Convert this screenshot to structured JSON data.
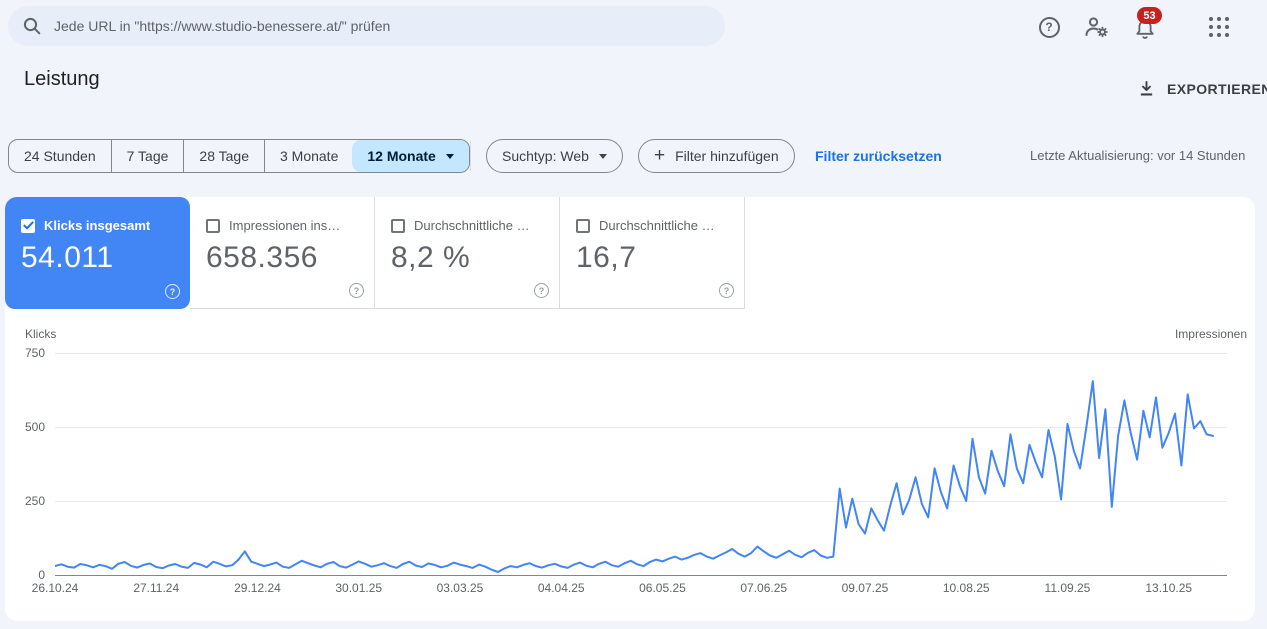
{
  "topbar": {
    "search_placeholder": "Jede URL in \"https://www.studio-benessere.at/\" prüfen",
    "notifications_count": "53"
  },
  "header": {
    "title": "Leistung",
    "export_label": "EXPORTIEREN"
  },
  "filters": {
    "ranges": [
      "24 Stunden",
      "7 Tage",
      "28 Tage",
      "3 Monate",
      "12 Monate"
    ],
    "selected_range": "12 Monate",
    "search_type_label": "Suchtyp: Web",
    "add_filter_label": "Filter hinzufügen",
    "reset_label": "Filter zurücksetzen",
    "last_update": "Letzte Aktualisierung: vor 14 Stunden"
  },
  "metrics": {
    "cards": [
      {
        "label": "Klicks insgesamt",
        "value": "54.011",
        "checked": true,
        "accent": "#4285f4"
      },
      {
        "label": "Impressionen ins…",
        "value": "658.356",
        "checked": false
      },
      {
        "label": "Durchschnittliche …",
        "value": "8,2 %",
        "checked": false
      },
      {
        "label": "Durchschnittliche …",
        "value": "16,7",
        "checked": false
      }
    ]
  },
  "chart_data": {
    "type": "line",
    "ylabel_left": "Klicks",
    "ylabel_right": "Impressionen",
    "ylim": [
      0,
      750
    ],
    "grid": true,
    "y_ticks": [
      "0",
      "250",
      "500",
      "750"
    ],
    "x_tick_labels": [
      "26.10.24",
      "27.11.24",
      "29.12.24",
      "30.01.25",
      "03.03.25",
      "04.04.25",
      "06.05.25",
      "07.06.25",
      "09.07.25",
      "10.08.25",
      "11.09.25",
      "13.10.25"
    ],
    "tick_every_points": 16,
    "interval_days": 2,
    "series": [
      {
        "name": "Klicks",
        "color": "#4285f4",
        "values": [
          30,
          36,
          28,
          25,
          37,
          33,
          26,
          34,
          30,
          21,
          38,
          44,
          31,
          25,
          34,
          39,
          27,
          23,
          32,
          37,
          28,
          24,
          41,
          35,
          26,
          45,
          38,
          29,
          33,
          52,
          80,
          45,
          38,
          30,
          35,
          42,
          28,
          24,
          36,
          48,
          40,
          32,
          26,
          38,
          44,
          30,
          25,
          35,
          46,
          38,
          28,
          33,
          40,
          30,
          24,
          37,
          45,
          32,
          27,
          39,
          34,
          26,
          31,
          42,
          35,
          30,
          24,
          35,
          28,
          18,
          10,
          22,
          30,
          26,
          34,
          40,
          30,
          25,
          33,
          38,
          29,
          24,
          35,
          42,
          31,
          26,
          38,
          45,
          33,
          28,
          40,
          48,
          36,
          30,
          44,
          52,
          46,
          55,
          62,
          52,
          58,
          68,
          74,
          62,
          55,
          66,
          76,
          88,
          72,
          62,
          74,
          96,
          80,
          66,
          58,
          70,
          82,
          68,
          60,
          75,
          84,
          66,
          58,
          62,
          292,
          160,
          258,
          172,
          140,
          225,
          185,
          150,
          235,
          310,
          205,
          255,
          330,
          240,
          195,
          360,
          280,
          225,
          370,
          300,
          250,
          460,
          330,
          275,
          420,
          350,
          300,
          475,
          360,
          310,
          440,
          380,
          330,
          490,
          400,
          255,
          510,
          420,
          360,
          500,
          655,
          395,
          560,
          230,
          470,
          590,
          480,
          390,
          555,
          465,
          600,
          430,
          480,
          545,
          370,
          610,
          495,
          520,
          475,
          470
        ]
      }
    ]
  }
}
